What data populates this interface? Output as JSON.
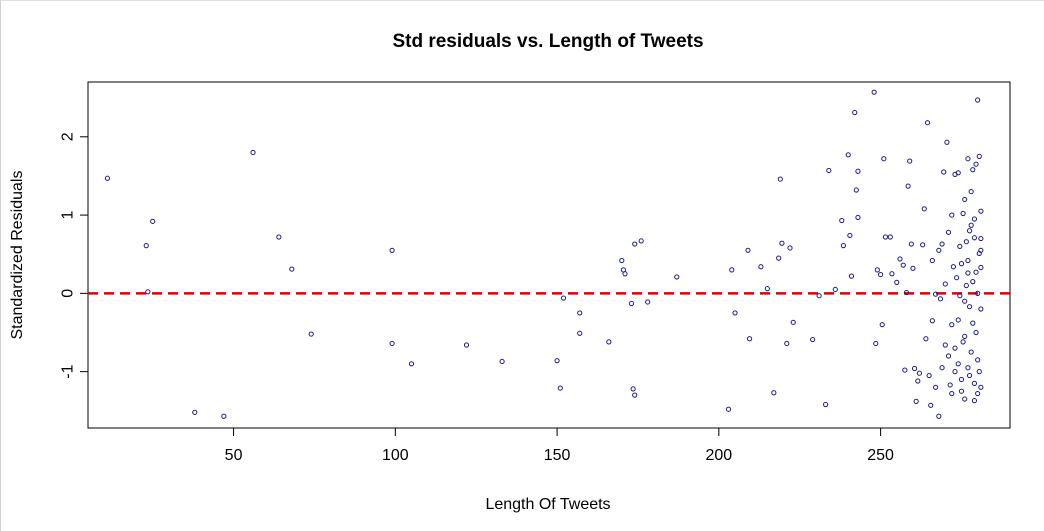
{
  "chart_data": {
    "type": "scatter",
    "title": "Std residuals vs. Length of Tweets",
    "xlabel": "Length Of Tweets",
    "ylabel": "Standardized Residuals",
    "xlim": [
      5,
      290
    ],
    "ylim": [
      -1.72,
      2.7
    ],
    "xticks": [
      50,
      100,
      150,
      200,
      250
    ],
    "yticks": [
      -1,
      0,
      1,
      2
    ],
    "reference_line": {
      "y": 0,
      "color": "#e00000",
      "style": "dashed"
    },
    "point_color": "#1a1a8c",
    "grid": false,
    "points": [
      [
        11,
        1.47
      ],
      [
        23,
        0.61
      ],
      [
        23.5,
        0.02
      ],
      [
        25,
        0.92
      ],
      [
        38,
        -1.52
      ],
      [
        47,
        -1.57
      ],
      [
        56,
        1.8
      ],
      [
        64,
        0.72
      ],
      [
        68,
        0.31
      ],
      [
        74,
        -0.52
      ],
      [
        99,
        0.55
      ],
      [
        99,
        -0.64
      ],
      [
        105,
        -0.9
      ],
      [
        122,
        -0.66
      ],
      [
        133,
        -0.87
      ],
      [
        150,
        -0.86
      ],
      [
        151,
        -1.21
      ],
      [
        152,
        -0.06
      ],
      [
        157,
        -0.25
      ],
      [
        157,
        -0.51
      ],
      [
        166,
        -0.62
      ],
      [
        170,
        0.42
      ],
      [
        170.5,
        0.3
      ],
      [
        171,
        0.25
      ],
      [
        173,
        -0.13
      ],
      [
        173.5,
        -1.22
      ],
      [
        174,
        -1.3
      ],
      [
        174,
        0.63
      ],
      [
        176,
        0.67
      ],
      [
        178,
        -0.11
      ],
      [
        187,
        0.21
      ],
      [
        203,
        -1.48
      ],
      [
        204,
        0.3
      ],
      [
        205,
        -0.25
      ],
      [
        209,
        0.55
      ],
      [
        209.5,
        -0.58
      ],
      [
        213,
        0.34
      ],
      [
        215,
        0.06
      ],
      [
        217,
        -1.27
      ],
      [
        218.5,
        0.45
      ],
      [
        219,
        1.46
      ],
      [
        219.5,
        0.64
      ],
      [
        221,
        -0.64
      ],
      [
        222,
        0.58
      ],
      [
        223,
        -0.37
      ],
      [
        229,
        -0.59
      ],
      [
        231,
        -0.03
      ],
      [
        233,
        -1.42
      ],
      [
        234,
        1.57
      ],
      [
        236,
        0.05
      ],
      [
        238,
        0.93
      ],
      [
        238.5,
        0.61
      ],
      [
        240,
        1.77
      ],
      [
        240.5,
        0.74
      ],
      [
        241,
        0.22
      ],
      [
        242,
        2.31
      ],
      [
        242.5,
        1.32
      ],
      [
        243,
        1.56
      ],
      [
        243,
        0.97
      ],
      [
        248,
        2.57
      ],
      [
        248.5,
        -0.64
      ],
      [
        249,
        0.3
      ],
      [
        250,
        0.24
      ],
      [
        250.5,
        -0.4
      ],
      [
        251,
        1.72
      ],
      [
        251.5,
        0.72
      ],
      [
        253,
        0.72
      ],
      [
        253.5,
        0.25
      ],
      [
        255,
        0.14
      ],
      [
        256,
        0.44
      ],
      [
        257,
        0.36
      ],
      [
        257.5,
        -0.98
      ],
      [
        258,
        0.01
      ],
      [
        258.5,
        1.37
      ],
      [
        259,
        1.69
      ],
      [
        259.5,
        0.63
      ],
      [
        260,
        0.32
      ],
      [
        260.5,
        -0.96
      ],
      [
        261,
        -1.38
      ],
      [
        261.5,
        -1.12
      ],
      [
        262,
        -1.02
      ],
      [
        263,
        0.62
      ],
      [
        263.5,
        1.08
      ],
      [
        264,
        -0.58
      ],
      [
        264.5,
        2.18
      ],
      [
        265,
        -1.05
      ],
      [
        265.5,
        -1.43
      ],
      [
        266,
        0.42
      ],
      [
        267,
        -0.01
      ],
      [
        268,
        -1.57
      ],
      [
        268.5,
        -0.07
      ],
      [
        269,
        0.63
      ],
      [
        269.5,
        1.55
      ],
      [
        270,
        -0.66
      ],
      [
        270.5,
        1.93
      ],
      [
        271,
        -0.8
      ],
      [
        271.5,
        -1.17
      ],
      [
        272,
        1.0
      ],
      [
        272.5,
        0.34
      ],
      [
        273,
        -0.7
      ],
      [
        273.5,
        0.2
      ],
      [
        274,
        1.54
      ],
      [
        274.5,
        -0.03
      ],
      [
        275,
        -1.25
      ],
      [
        275.5,
        1.02
      ],
      [
        276,
        -0.55
      ],
      [
        276.5,
        0.66
      ],
      [
        277,
        1.72
      ],
      [
        277.5,
        -0.17
      ],
      [
        277.5,
        -1.05
      ],
      [
        278,
        0.87
      ],
      [
        278.5,
        1.58
      ],
      [
        278.5,
        -0.38
      ],
      [
        279,
        0.71
      ],
      [
        279,
        -1.37
      ],
      [
        279.5,
        0.27
      ],
      [
        280,
        2.47
      ],
      [
        280,
        -1.28
      ],
      [
        280.5,
        1.75
      ],
      [
        280.5,
        0.51
      ],
      [
        274,
        -0.34
      ],
      [
        274,
        -0.9
      ],
      [
        274.5,
        0.6
      ],
      [
        275,
        -1.1
      ],
      [
        275.5,
        -0.62
      ],
      [
        276,
        1.2
      ],
      [
        276,
        -1.35
      ],
      [
        276.5,
        0.1
      ],
      [
        277,
        -0.95
      ],
      [
        277,
        0.42
      ],
      [
        277.5,
        0.8
      ],
      [
        278,
        -0.75
      ],
      [
        278,
        1.3
      ],
      [
        278.5,
        0.15
      ],
      [
        279,
        -1.15
      ],
      [
        279,
        0.95
      ],
      [
        279.5,
        -0.5
      ],
      [
        279.5,
        1.65
      ],
      [
        280,
        0.0
      ],
      [
        280,
        -0.85
      ],
      [
        280.5,
        -1.0
      ],
      [
        281,
        0.55
      ],
      [
        281,
        -0.2
      ],
      [
        281,
        0.33
      ],
      [
        281,
        1.05
      ],
      [
        281,
        -1.2
      ],
      [
        281,
        0.7
      ],
      [
        271,
        0.78
      ],
      [
        272,
        -0.4
      ],
      [
        273,
        -1.0
      ],
      [
        270,
        0.12
      ],
      [
        269,
        -0.95
      ],
      [
        268,
        0.55
      ],
      [
        267,
        -1.2
      ],
      [
        266,
        -0.35
      ],
      [
        273,
        1.52
      ],
      [
        272,
        -1.28
      ],
      [
        275,
        0.38
      ],
      [
        276,
        -0.1
      ],
      [
        277,
        0.26
      ]
    ]
  }
}
